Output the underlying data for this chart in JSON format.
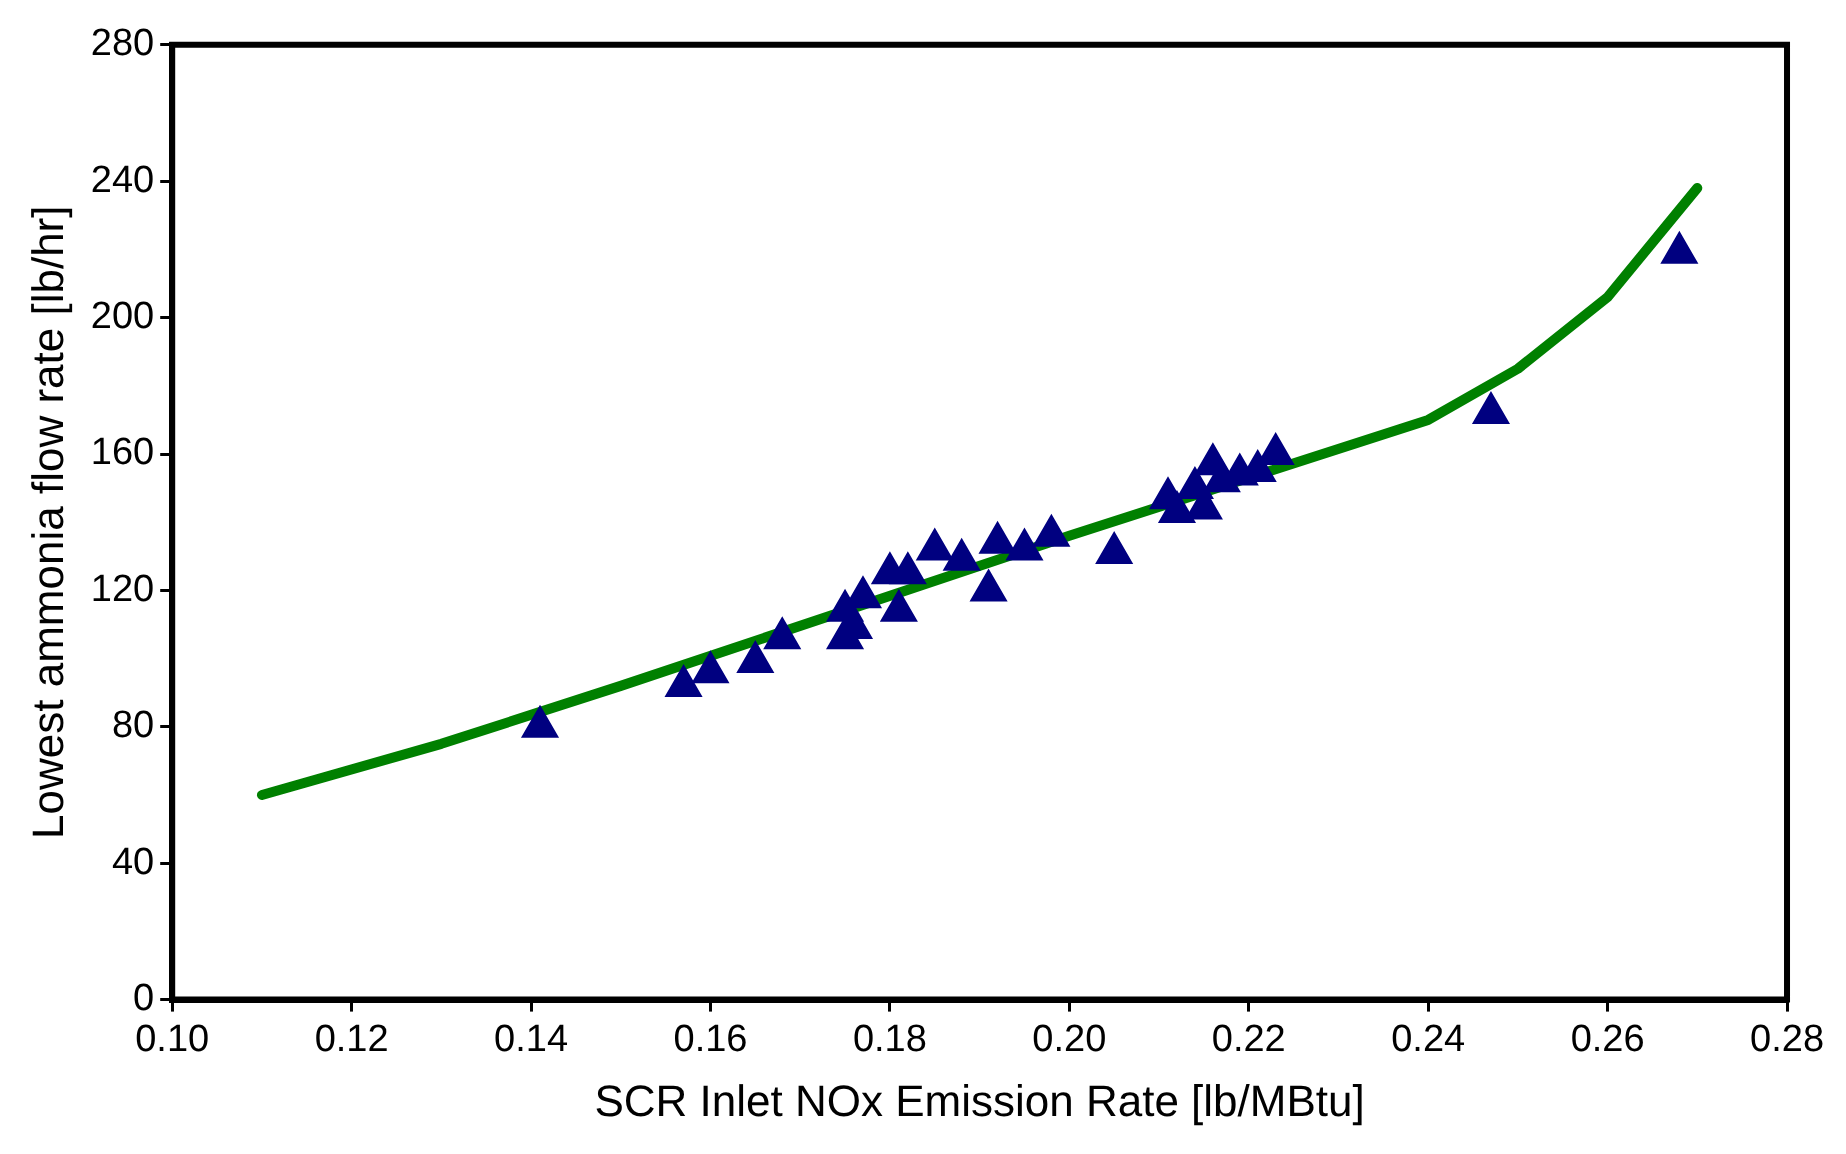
{
  "chart_data": {
    "type": "scatter",
    "xlabel": "SCR Inlet NOx Emission Rate [lb/MBtu]",
    "ylabel": "Lowest ammonia flow rate [lb/hr]",
    "xlim": [
      0.1,
      0.28
    ],
    "xticks": [
      {
        "value": 0.1,
        "label": "0.10"
      },
      0.12,
      0.14,
      0.16,
      0.18,
      {
        "value": 0.2,
        "label": "0.20"
      },
      0.22,
      0.24,
      0.26,
      {
        "value": 0.28,
        "label": "0.28"
      }
    ],
    "ylim": [
      0,
      280
    ],
    "yticks": [
      0,
      40,
      80,
      120,
      160,
      200,
      240,
      280
    ],
    "grid": false,
    "legend": false,
    "series": [
      {
        "type": "line",
        "color": "#008000",
        "marker": "none",
        "line_style": "solid",
        "x": [
          0.11,
          0.13,
          0.15,
          0.2,
          0.24,
          0.25,
          0.26,
          0.27
        ],
        "values": [
          60,
          75,
          92,
          136,
          170,
          185,
          206,
          238
        ]
      },
      {
        "type": "scatter",
        "color": "#000080",
        "marker": "triangle",
        "x": [
          0.141,
          0.157,
          0.16,
          0.165,
          0.168,
          0.174,
          0.175,
          0.175,
          0.176,
          0.177,
          0.181,
          0.18,
          0.182,
          0.185,
          0.188,
          0.191,
          0.192,
          0.195,
          0.198,
          0.205,
          0.211,
          0.212,
          0.214,
          0.215,
          0.216,
          0.217,
          0.219,
          0.221,
          0.223,
          0.247,
          0.268
        ],
        "values": [
          80,
          92,
          96,
          99,
          106,
          null,
          114,
          106,
          109,
          118,
          114,
          125,
          125,
          132,
          129,
          120,
          134,
          132,
          136,
          131,
          147,
          143,
          150,
          144,
          157,
          152,
          154,
          155,
          160,
          172,
          219
        ]
      }
    ]
  }
}
